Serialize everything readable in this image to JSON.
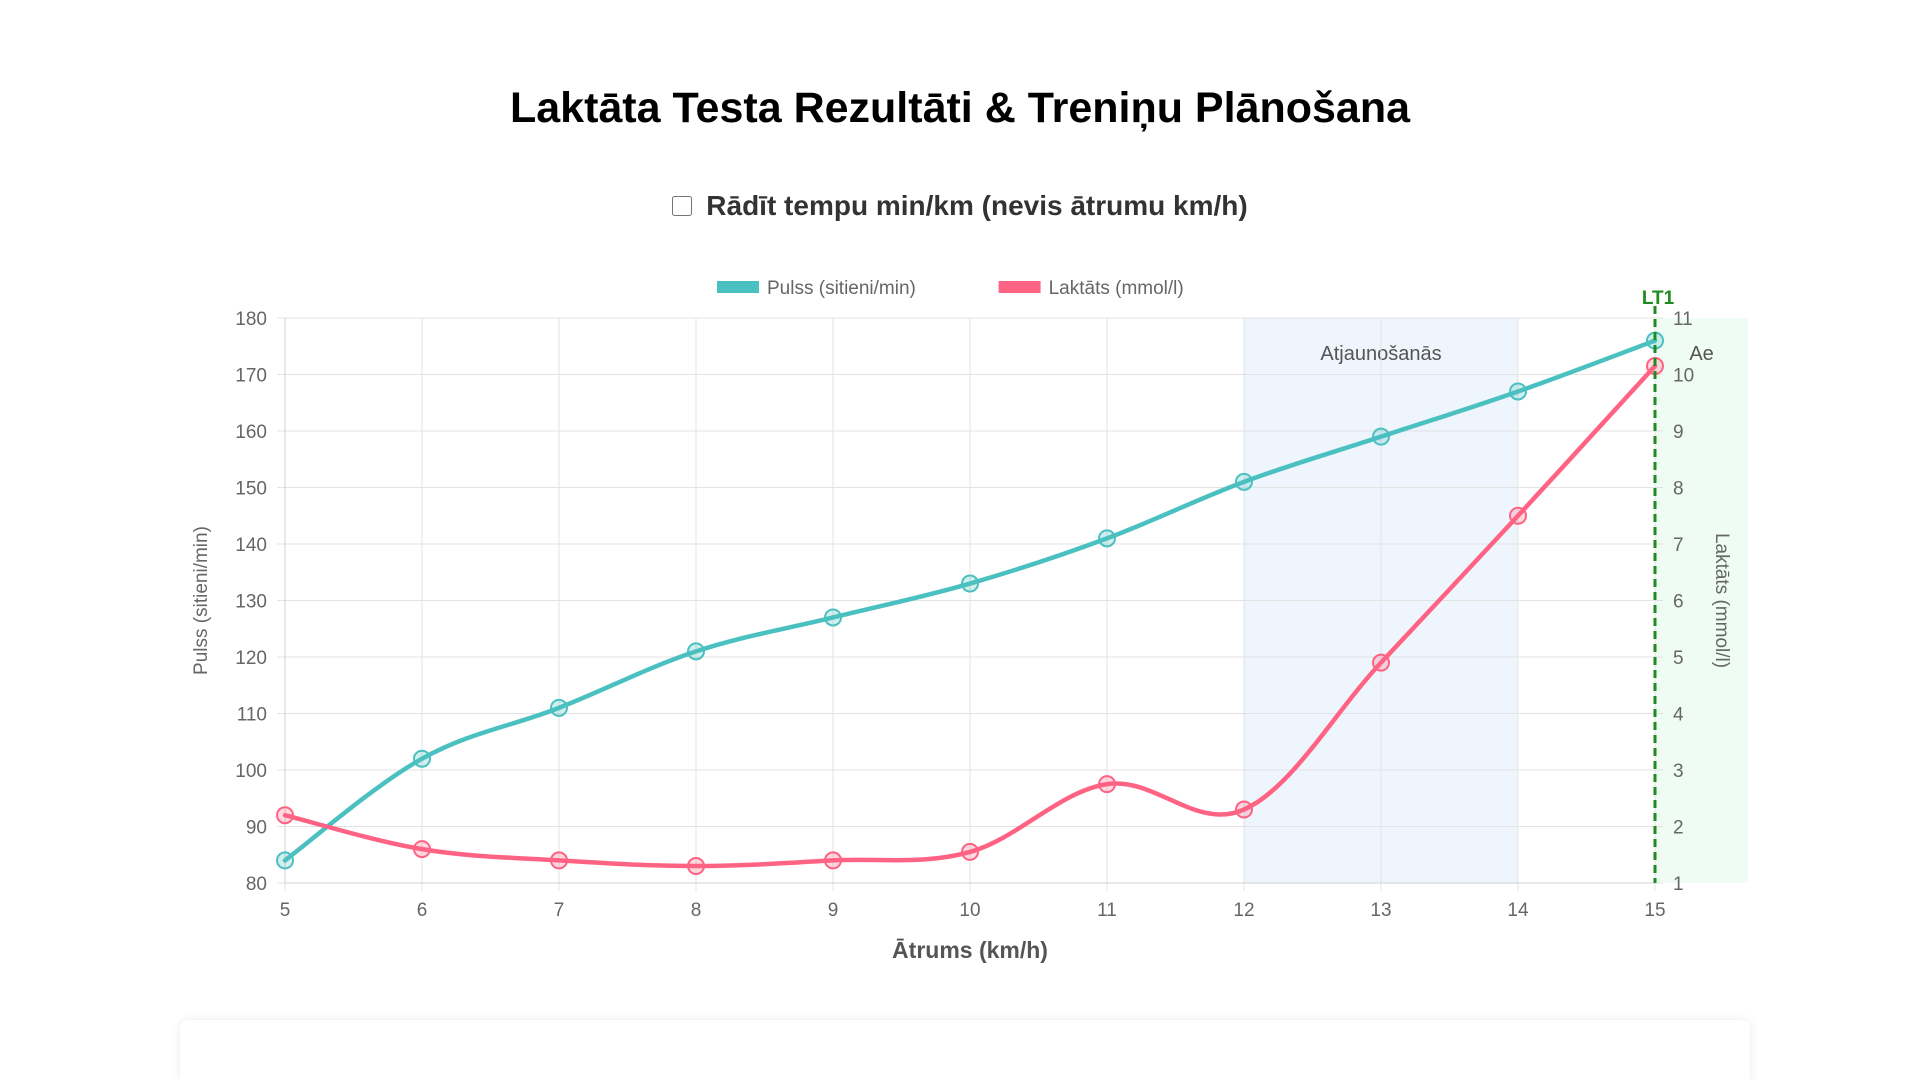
{
  "page": {
    "title": "Laktāta Testa Rezultāti & Treniņu Plānošana",
    "toggle_label": "Rādīt tempu min/km (nevis ātrumu km/h)",
    "toggle_checked": false
  },
  "chart_data": {
    "type": "line",
    "title": "",
    "xlabel": "Ātrums (km/h)",
    "ylabel": "Pulss (sitieni/min)",
    "y2label": "Laktāts (mmol/l)",
    "x": [
      5,
      6,
      7,
      8,
      9,
      10,
      11,
      12,
      13,
      14,
      15
    ],
    "xlim": [
      5,
      15
    ],
    "ylim": [
      80,
      180
    ],
    "y2lim": [
      1,
      11
    ],
    "yticks": [
      80,
      90,
      100,
      110,
      120,
      130,
      140,
      150,
      160,
      170,
      180
    ],
    "y2ticks": [
      1,
      2,
      3,
      4,
      5,
      6,
      7,
      8,
      9,
      10,
      11
    ],
    "grid": true,
    "legend_position": "top",
    "series": [
      {
        "name": "Pulss (sitieni/min)",
        "axis": "left",
        "color": "#4bc0c0",
        "values": [
          84,
          102,
          111,
          121,
          127,
          133,
          141,
          151,
          159,
          167,
          176
        ]
      },
      {
        "name": "Laktāts (mmol/l)",
        "axis": "right",
        "color": "#ff6384",
        "values": [
          2.2,
          1.6,
          1.4,
          1.3,
          1.4,
          1.55,
          2.75,
          2.3,
          4.9,
          7.5,
          10.15
        ]
      }
    ],
    "zones": [
      {
        "label": "Atjaunošanās",
        "x_start": 12,
        "x_end": 14,
        "color": "#eef5fc"
      },
      {
        "label": "Ae",
        "x_start": 15,
        "x_end": 15.68,
        "color": "#effcf4"
      }
    ],
    "markers": [
      {
        "label": "LT1",
        "x": 15,
        "color": "#1f8a1f"
      }
    ]
  }
}
